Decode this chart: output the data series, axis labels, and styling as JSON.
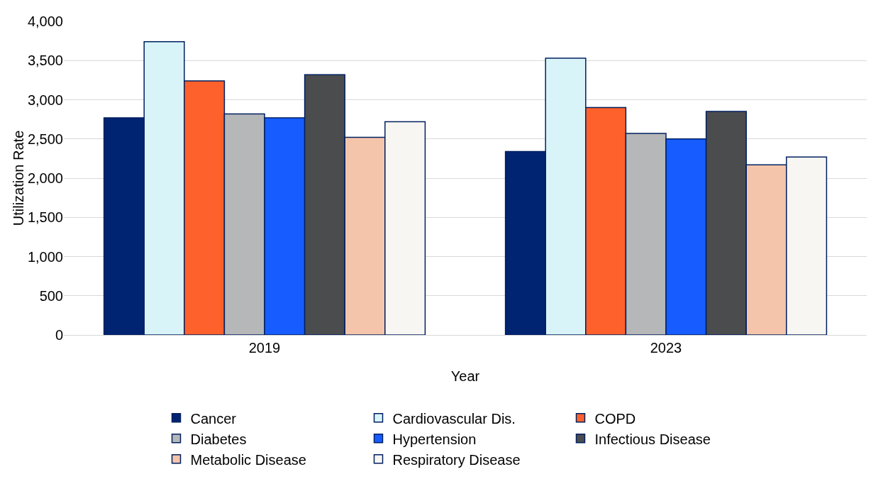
{
  "chart_data": {
    "type": "bar",
    "xlabel": "Year",
    "ylabel": "Utilization Rate",
    "categories": [
      "2019",
      "2023"
    ],
    "series": [
      {
        "name": "Cancer",
        "color": "#002372",
        "values": [
          2770,
          2340
        ]
      },
      {
        "name": "Cardiovascular Dis.",
        "color": "#d9f4f8",
        "values": [
          3740,
          3530
        ]
      },
      {
        "name": "COPD",
        "color": "#fe612c",
        "values": [
          3240,
          2900
        ]
      },
      {
        "name": "Diabetes",
        "color": "#b6b7b9",
        "values": [
          2820,
          2570
        ]
      },
      {
        "name": "Hypertension",
        "color": "#175cfe",
        "values": [
          2770,
          2500
        ]
      },
      {
        "name": "Infectious Disease",
        "color": "#4b4c4e",
        "values": [
          3320,
          2850
        ]
      },
      {
        "name": "Metabolic Disease",
        "color": "#f4c5ab",
        "values": [
          2520,
          2170
        ]
      },
      {
        "name": "Respiratory Disease",
        "color": "#f8f6f2",
        "values": [
          2720,
          2270
        ]
      }
    ],
    "ylim": [
      0,
      4000
    ],
    "yticks": [
      {
        "value": 0,
        "label": "0"
      },
      {
        "value": 500,
        "label": "500"
      },
      {
        "value": 1000,
        "label": "1,000"
      },
      {
        "value": 1500,
        "label": "1,500"
      },
      {
        "value": 2000,
        "label": "2,000"
      },
      {
        "value": 2500,
        "label": "2,500"
      },
      {
        "value": 3000,
        "label": "3,000"
      },
      {
        "value": 3500,
        "label": "3,500"
      },
      {
        "value": 4000,
        "label": "4,000"
      }
    ],
    "grid": "y",
    "legend": "bottom"
  }
}
